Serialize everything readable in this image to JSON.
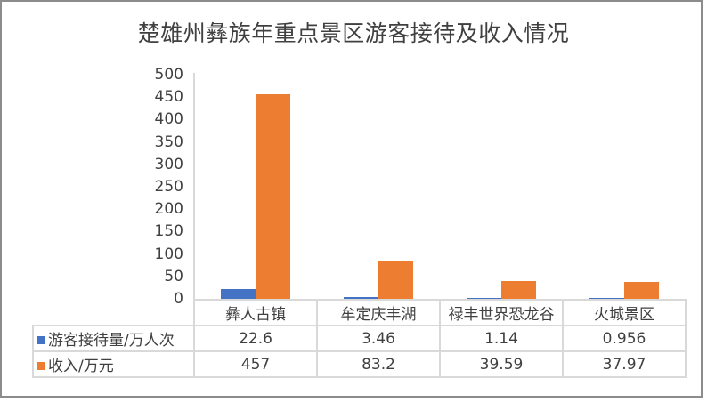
{
  "chart": {
    "title": "楚雄州彝族年重点景区游客接待及收入情况"
  },
  "colors": {
    "series0": "#4472c4",
    "series1": "#ed7d31"
  },
  "yaxis": {
    "ticks": [
      "500",
      "450",
      "400",
      "350",
      "300",
      "250",
      "200",
      "150",
      "100",
      "50",
      "0"
    ]
  },
  "table": {
    "categories": [
      "彝人古镇",
      "牟定庆丰湖",
      "禄丰世界恐龙谷",
      "火城景区"
    ],
    "rows": [
      {
        "label": "游客接待量/万人次",
        "values": [
          "22.6",
          "3.46",
          "1.14",
          "0.956"
        ]
      },
      {
        "label": "收入/万元",
        "values": [
          "457",
          "83.2",
          "39.59",
          "37.97"
        ]
      }
    ]
  },
  "chart_data": {
    "type": "bar",
    "title": "楚雄州彝族年重点景区游客接待及收入情况",
    "categories": [
      "彝人古镇",
      "牟定庆丰湖",
      "禄丰世界恐龙谷",
      "火城景区"
    ],
    "series": [
      {
        "name": "游客接待量/万人次",
        "color": "#4472c4",
        "values": [
          22.6,
          3.46,
          1.14,
          0.956
        ]
      },
      {
        "name": "收入/万元",
        "color": "#ed7d31",
        "values": [
          457,
          83.2,
          39.59,
          37.97
        ]
      }
    ],
    "xlabel": "",
    "ylabel": "",
    "ylim": [
      0,
      500
    ],
    "yticks": [
      0,
      50,
      100,
      150,
      200,
      250,
      300,
      350,
      400,
      450,
      500
    ],
    "grid": false,
    "legend_position": "data-table-left"
  }
}
